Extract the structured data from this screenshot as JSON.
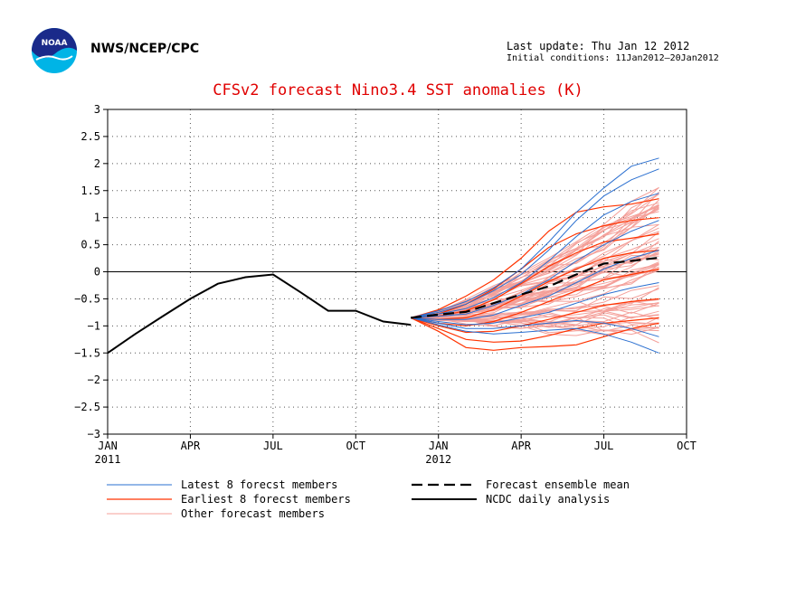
{
  "header": {
    "org": "NWS/NCEP/CPC",
    "last_update": "Last update: Thu Jan 12 2012",
    "initial_conditions": "Initial conditions: 11Jan2012–20Jan2012",
    "logo_text": "NOAA"
  },
  "colors": {
    "title": "#e00000",
    "latest": "#2a6fd0",
    "earliest": "#ff3300",
    "other": "#f4a09a",
    "mean": "#000000",
    "analysis": "#000000"
  },
  "chart_data": {
    "type": "line",
    "title": "CFSv2 forecast Nino3.4 SST anomalies (K)",
    "xlabel": "",
    "ylabel": "",
    "ylim": [
      -3,
      3
    ],
    "y_ticks": [
      -3,
      -2.5,
      -2,
      -1.5,
      -1,
      -0.5,
      0,
      0.5,
      1,
      1.5,
      2,
      2.5,
      3
    ],
    "y_tick_labels": [
      "−3",
      "−2.5",
      "−2",
      "−1.5",
      "−1",
      "−0.5",
      "0",
      "0.5",
      "1",
      "1.5",
      "2",
      "2.5",
      "3"
    ],
    "x_ticks": [
      {
        "date": "2011-01",
        "label": "JAN",
        "sublabel": "2011"
      },
      {
        "date": "2011-04",
        "label": "APR",
        "sublabel": ""
      },
      {
        "date": "2011-07",
        "label": "JUL",
        "sublabel": ""
      },
      {
        "date": "2011-10",
        "label": "OCT",
        "sublabel": ""
      },
      {
        "date": "2012-01",
        "label": "JAN",
        "sublabel": "2012"
      },
      {
        "date": "2012-04",
        "label": "APR",
        "sublabel": ""
      },
      {
        "date": "2012-07",
        "label": "JUL",
        "sublabel": ""
      },
      {
        "date": "2012-10",
        "label": "OCT",
        "sublabel": ""
      }
    ],
    "grid": true,
    "legend_position": "bottom",
    "series": [
      {
        "name": "NCDC daily analysis",
        "style": "solid",
        "x": [
          "2011-01",
          "2011-02",
          "2011-03",
          "2011-04",
          "2011-05",
          "2011-06",
          "2011-07",
          "2011-08",
          "2011-09",
          "2011-10",
          "2011-11",
          "2011-12"
        ],
        "values": [
          -1.5,
          -1.15,
          -0.82,
          -0.5,
          -0.22,
          -0.1,
          -0.05,
          -0.38,
          -0.72,
          -0.72,
          -0.92,
          -0.98
        ]
      },
      {
        "name": "Forecast ensemble mean",
        "style": "dashed",
        "x": [
          "2011-12",
          "2012-01",
          "2012-02",
          "2012-03",
          "2012-04",
          "2012-05",
          "2012-06",
          "2012-07",
          "2012-08",
          "2012-09"
        ],
        "values": [
          -0.85,
          -0.79,
          -0.74,
          -0.58,
          -0.42,
          -0.27,
          -0.05,
          0.15,
          0.2,
          0.26
        ]
      },
      {
        "name": "Latest 8 forecst members"
      },
      {
        "name": "Earliest 8 forecst members"
      },
      {
        "name": "Other forecast members"
      }
    ],
    "ensemble": {
      "x": [
        "2011-12",
        "2012-01",
        "2012-02",
        "2012-03",
        "2012-04",
        "2012-05",
        "2012-06",
        "2012-07",
        "2012-08",
        "2012-09"
      ],
      "start": -0.85,
      "latest": [
        [
          -0.85,
          -0.72,
          -0.55,
          -0.3,
          0.05,
          0.55,
          1.1,
          1.55,
          1.95,
          2.1
        ],
        [
          -0.85,
          -0.75,
          -0.6,
          -0.35,
          -0.05,
          0.4,
          0.95,
          1.4,
          1.7,
          1.9
        ],
        [
          -0.85,
          -0.78,
          -0.68,
          -0.48,
          -0.2,
          0.2,
          0.65,
          1.05,
          1.3,
          1.45
        ],
        [
          -0.85,
          -0.82,
          -0.78,
          -0.62,
          -0.42,
          -0.15,
          0.2,
          0.5,
          0.75,
          0.95
        ],
        [
          -0.85,
          -0.88,
          -0.88,
          -0.8,
          -0.62,
          -0.45,
          -0.2,
          0.05,
          0.25,
          0.4
        ],
        [
          -0.85,
          -0.92,
          -0.98,
          -0.95,
          -0.85,
          -0.75,
          -0.58,
          -0.42,
          -0.3,
          -0.2
        ],
        [
          -0.85,
          -0.95,
          -1.05,
          -1.05,
          -1.0,
          -0.95,
          -0.9,
          -0.95,
          -1.05,
          -1.2
        ],
        [
          -0.85,
          -0.98,
          -1.1,
          -1.15,
          -1.12,
          -1.08,
          -1.05,
          -1.15,
          -1.3,
          -1.5
        ]
      ],
      "earliest": [
        [
          -0.85,
          -0.7,
          -0.45,
          -0.15,
          0.25,
          0.75,
          1.1,
          1.2,
          1.25,
          1.35
        ],
        [
          -0.85,
          -0.78,
          -0.6,
          -0.32,
          0.05,
          0.45,
          0.7,
          0.85,
          0.95,
          1.0
        ],
        [
          -0.85,
          -0.82,
          -0.72,
          -0.52,
          -0.22,
          0.1,
          0.35,
          0.55,
          0.62,
          0.7
        ],
        [
          -0.85,
          -0.88,
          -0.85,
          -0.7,
          -0.45,
          -0.18,
          0.05,
          0.25,
          0.35,
          0.4
        ],
        [
          -0.85,
          -0.95,
          -1.0,
          -0.92,
          -0.75,
          -0.55,
          -0.35,
          -0.15,
          -0.05,
          0.05
        ],
        [
          -0.85,
          -1.0,
          -1.12,
          -1.1,
          -1.0,
          -0.88,
          -0.75,
          -0.62,
          -0.55,
          -0.5
        ],
        [
          -0.85,
          -1.05,
          -1.25,
          -1.3,
          -1.28,
          -1.18,
          -1.05,
          -0.95,
          -0.9,
          -0.85
        ],
        [
          -0.85,
          -1.1,
          -1.4,
          -1.45,
          -1.4,
          -1.38,
          -1.35,
          -1.2,
          -1.05,
          -0.95
        ]
      ],
      "other_count": 64,
      "other_min_end": -1.2,
      "other_max_end": 1.6
    }
  }
}
